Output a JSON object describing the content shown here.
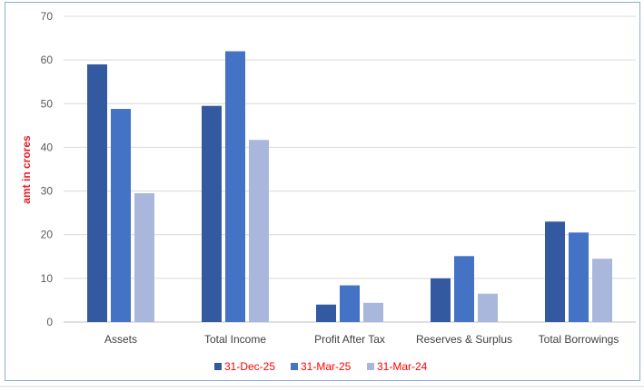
{
  "chart_data": {
    "type": "bar",
    "title": "",
    "xlabel": "",
    "ylabel": "amt in crores",
    "ylim": [
      0,
      70
    ],
    "yticks": [
      "0",
      "10",
      "20",
      "30",
      "40",
      "50",
      "60",
      "70"
    ],
    "grid": true,
    "legend_position": "bottom",
    "categories": [
      "Assets",
      "Total Income",
      "Profit After Tax",
      "Reserves & Surplus",
      "Total Borrowings"
    ],
    "series": [
      {
        "name": "31-Dec-25",
        "color": "#335aa1",
        "values": [
          59,
          49.5,
          4,
          10,
          23
        ]
      },
      {
        "name": "31-Mar-25",
        "color": "#4472c4",
        "values": [
          48.8,
          62,
          8.4,
          15.1,
          20.5
        ]
      },
      {
        "name": "31-Mar-24",
        "color": "#a9b7dc",
        "values": [
          29.5,
          41.7,
          4.4,
          6.5,
          14.5
        ]
      }
    ]
  }
}
